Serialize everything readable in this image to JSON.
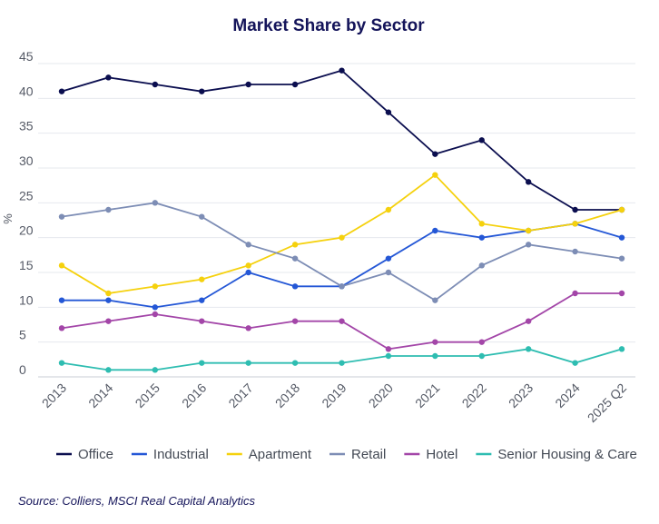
{
  "chart_data": {
    "type": "line",
    "title": "Market Share by Sector",
    "xlabel": "",
    "ylabel": "%",
    "ylim": [
      0,
      45
    ],
    "yticks": [
      0,
      5,
      10,
      15,
      20,
      25,
      30,
      35,
      40,
      45
    ],
    "grid": true,
    "legend_position": "bottom",
    "categories": [
      "2013",
      "2014",
      "2015",
      "2016",
      "2017",
      "2018",
      "2019",
      "2020",
      "2021",
      "2022",
      "2023",
      "2024",
      "2025 Q2"
    ],
    "series": [
      {
        "name": "Office",
        "color": "#0b0e4f",
        "values": [
          41,
          43,
          42,
          41,
          42,
          42,
          44,
          38,
          32,
          34,
          28,
          24,
          24
        ]
      },
      {
        "name": "Industrial",
        "color": "#2457d6",
        "values": [
          11,
          11,
          10,
          11,
          15,
          13,
          13,
          17,
          21,
          20,
          21,
          22,
          20
        ]
      },
      {
        "name": "Apartment",
        "color": "#f5d10d",
        "values": [
          16,
          12,
          13,
          14,
          16,
          19,
          20,
          24,
          29,
          22,
          21,
          22,
          24
        ]
      },
      {
        "name": "Retail",
        "color": "#7d8db5",
        "values": [
          23,
          24,
          25,
          23,
          19,
          17,
          13,
          15,
          11,
          16,
          19,
          18,
          17
        ]
      },
      {
        "name": "Hotel",
        "color": "#a346a8",
        "values": [
          7,
          8,
          9,
          8,
          7,
          8,
          8,
          4,
          5,
          5,
          8,
          12,
          12
        ]
      },
      {
        "name": "Senior Housing & Care",
        "color": "#2ebdb1",
        "values": [
          2,
          1,
          1,
          2,
          2,
          2,
          2,
          3,
          3,
          3,
          4,
          2,
          4
        ]
      }
    ]
  },
  "source": "Source: Colliers, MSCI Real Capital Analytics"
}
